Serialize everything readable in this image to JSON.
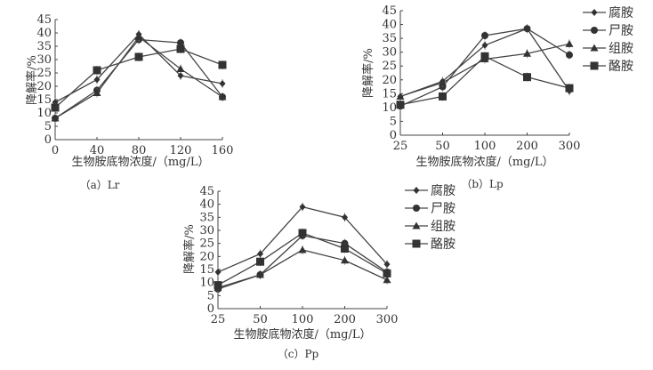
{
  "chart_data": [
    {
      "type": "line",
      "caption": "（a）Lr",
      "xlabel": "生物胺底物浓度/（mg/L）",
      "ylabel": "降解率/%",
      "categories": [
        "0",
        "40",
        "80",
        "120",
        "160"
      ],
      "ylim": [
        0,
        45
      ],
      "yticks": [
        "0",
        "5",
        "10",
        "15",
        "20",
        "25",
        "30",
        "35",
        "40",
        "45"
      ],
      "legend": null,
      "series": [
        {
          "name": "腐胺",
          "marker": "diamond",
          "values": [
            14,
            22.5,
            39.5,
            24,
            21
          ]
        },
        {
          "name": "尸胺",
          "marker": "circle",
          "values": [
            8,
            18.5,
            37.5,
            36.3,
            16
          ]
        },
        {
          "name": "组胺",
          "marker": "triangle",
          "values": [
            8,
            17.5,
            38.5,
            26.5,
            16
          ]
        },
        {
          "name": "酪胺",
          "marker": "square",
          "values": [
            12,
            26,
            31,
            34,
            28
          ]
        }
      ]
    },
    {
      "type": "line",
      "caption": "（b）Lp",
      "xlabel": "生物胺底物浓度/（mg/L）",
      "ylabel": "降解率/%",
      "categories": [
        "25",
        "50",
        "100",
        "200",
        "300"
      ],
      "ylim": [
        0,
        45
      ],
      "yticks": [
        "0",
        "5",
        "10",
        "15",
        "20",
        "25",
        "30",
        "35",
        "40",
        "45"
      ],
      "legend": "right",
      "series": [
        {
          "name": "腐胺",
          "marker": "diamond",
          "values": [
            14,
            19.5,
            32.5,
            38.5,
            16
          ]
        },
        {
          "name": "尸胺",
          "marker": "circle",
          "values": [
            10.5,
            17.5,
            36,
            38.5,
            29
          ]
        },
        {
          "name": "组胺",
          "marker": "triangle",
          "values": [
            14,
            19,
            27.5,
            29.5,
            33
          ]
        },
        {
          "name": "酪胺",
          "marker": "square",
          "values": [
            11,
            14,
            28.5,
            21,
            17
          ]
        }
      ]
    },
    {
      "type": "line",
      "caption": "（c）Pp",
      "xlabel": "生物胺底物浓度/（mg/L）",
      "ylabel": "降解率/%",
      "categories": [
        "25",
        "50",
        "100",
        "200",
        "300"
      ],
      "ylim": [
        0,
        45
      ],
      "yticks": [
        "0",
        "5",
        "10",
        "15",
        "20",
        "25",
        "30",
        "35",
        "40",
        "45"
      ],
      "legend": "right",
      "series": [
        {
          "name": "腐胺",
          "marker": "diamond",
          "values": [
            14,
            21,
            39,
            35,
            17
          ]
        },
        {
          "name": "尸胺",
          "marker": "circle",
          "values": [
            7.5,
            13,
            28,
            25,
            14
          ]
        },
        {
          "name": "组胺",
          "marker": "triangle",
          "values": [
            8,
            13,
            22.5,
            18.5,
            11
          ]
        },
        {
          "name": "酪胺",
          "marker": "square",
          "values": [
            9,
            18,
            29,
            23,
            13.5
          ]
        }
      ]
    }
  ]
}
